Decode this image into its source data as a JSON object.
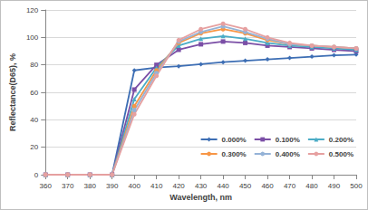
{
  "chart_data": {
    "type": "line",
    "x_label": "Wavelength, nm",
    "y_label": "Reflectance(D65), %",
    "x": [
      360,
      370,
      380,
      390,
      400,
      410,
      420,
      430,
      440,
      450,
      460,
      470,
      480,
      490,
      500
    ],
    "series": [
      {
        "name": "0.000%",
        "color": "#3d6eb4",
        "marker": "diamond",
        "values": [
          0,
          0,
          0,
          0,
          76,
          78,
          79,
          80.5,
          82,
          83,
          84,
          85,
          86,
          87,
          87.5
        ]
      },
      {
        "name": "0.100%",
        "color": "#7b4fa6",
        "marker": "square",
        "values": [
          0,
          0,
          0,
          0,
          62,
          80,
          91,
          95,
          97,
          96,
          94,
          93,
          92,
          91,
          90
        ]
      },
      {
        "name": "0.200%",
        "color": "#4bacc6",
        "marker": "triangle",
        "values": [
          0,
          0,
          0,
          0,
          55,
          78,
          94,
          99,
          101,
          99,
          96,
          94,
          93,
          92,
          91
        ]
      },
      {
        "name": "0.300%",
        "color": "#f79646",
        "marker": "circle",
        "values": [
          0,
          0,
          0,
          0,
          50,
          76,
          96,
          103,
          106,
          103,
          98,
          95,
          94,
          93,
          92
        ]
      },
      {
        "name": "0.400%",
        "color": "#95b3d7",
        "marker": "circle",
        "values": [
          0,
          0,
          0,
          0,
          47,
          74,
          97,
          104,
          108,
          104,
          99,
          95,
          94,
          93,
          92
        ]
      },
      {
        "name": "0.500%",
        "color": "#e6a0a0",
        "marker": "circle",
        "values": [
          0,
          0,
          0,
          0,
          44,
          72,
          98,
          106,
          110,
          106,
          100,
          96,
          94,
          93,
          92
        ]
      }
    ],
    "xlim": [
      360,
      500
    ],
    "xticks": [
      360,
      370,
      380,
      390,
      400,
      410,
      420,
      430,
      440,
      450,
      460,
      470,
      480,
      490,
      500
    ],
    "ylim": [
      0,
      120
    ],
    "yticks": [
      0,
      20,
      40,
      60,
      80,
      100,
      120
    ],
    "grid": true,
    "legend": "lower right"
  }
}
